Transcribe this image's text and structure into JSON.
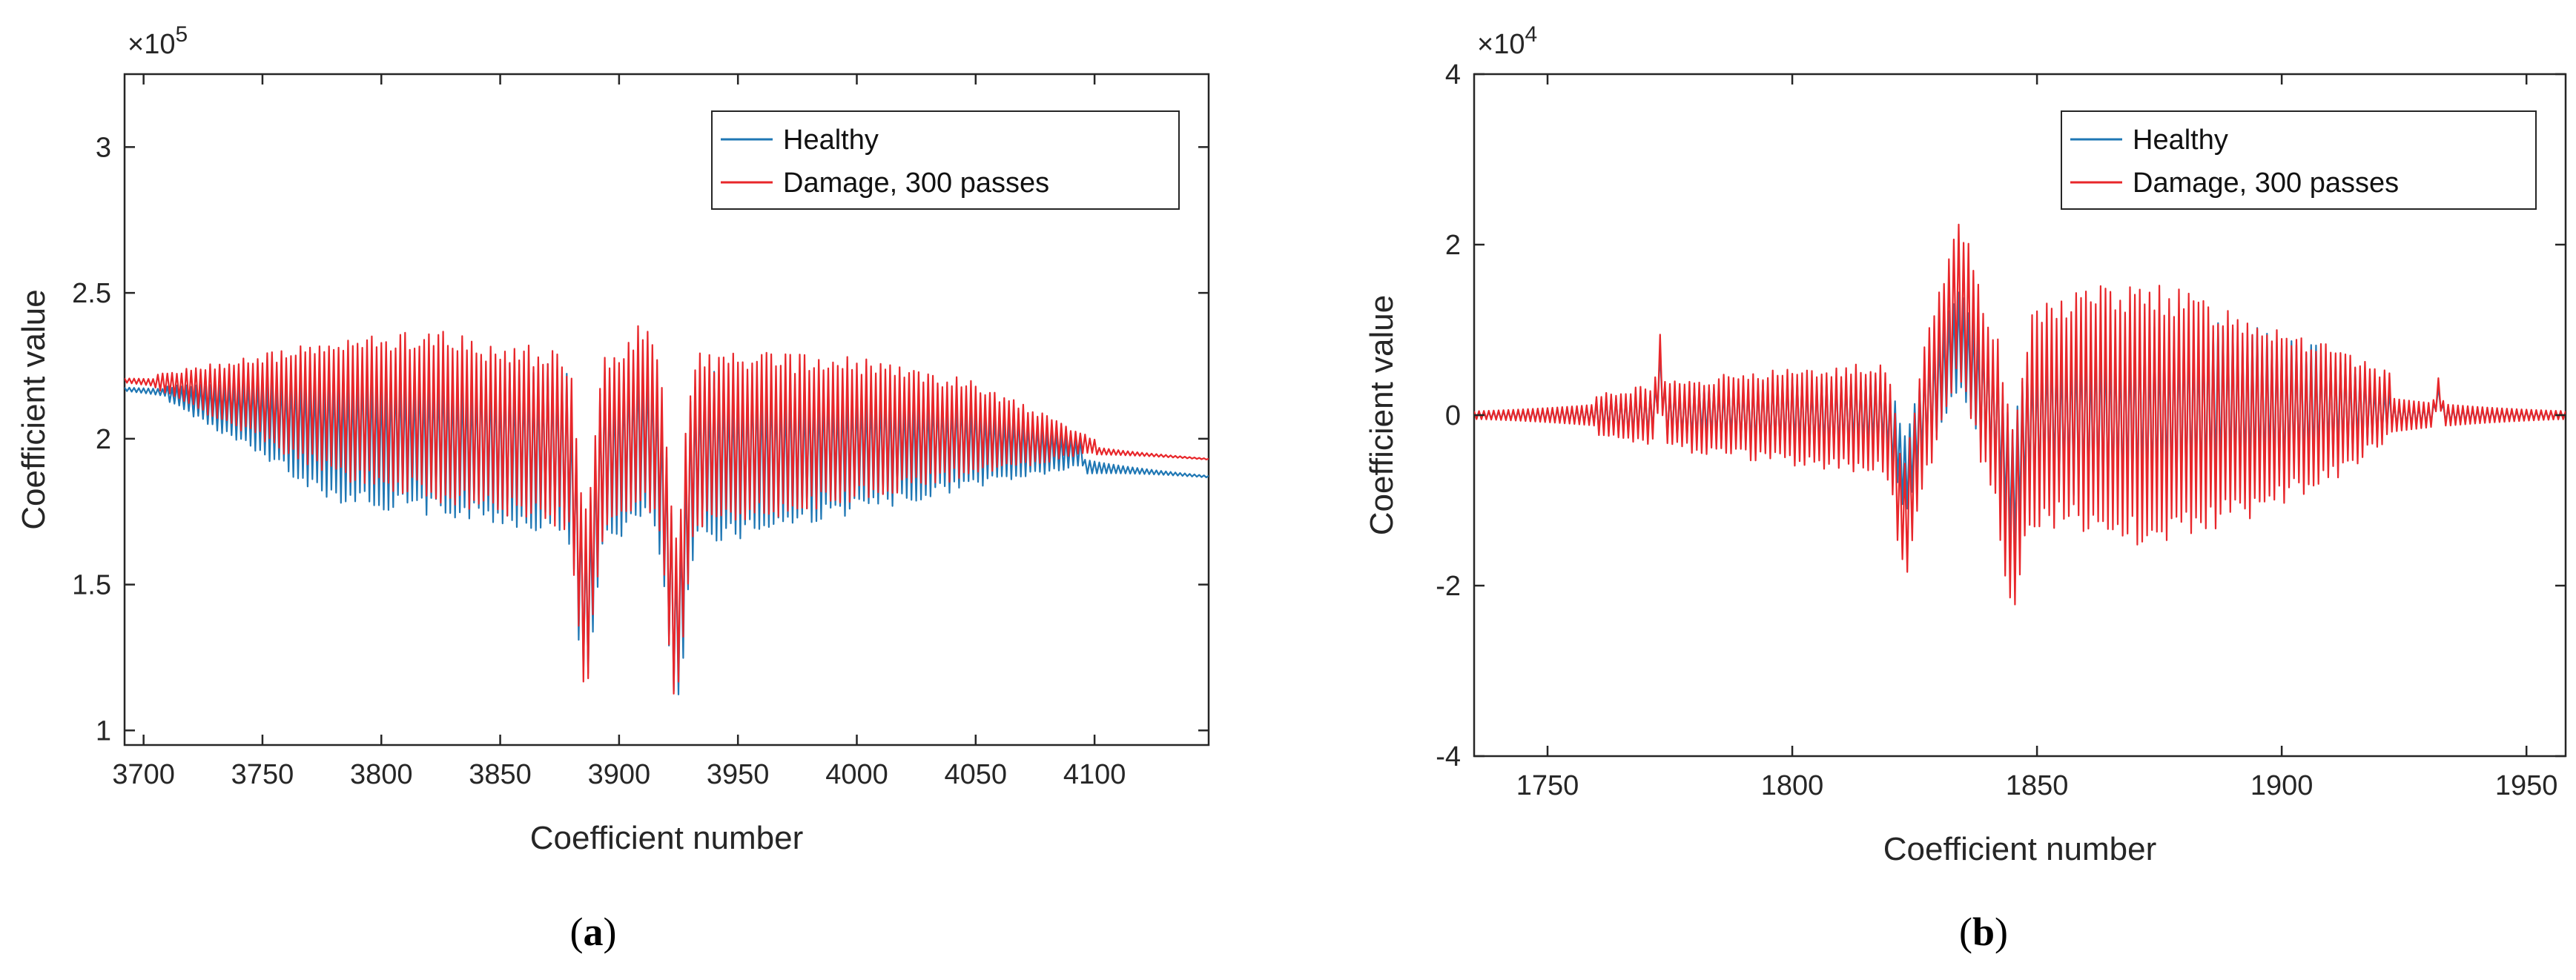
{
  "chart_data": [
    {
      "id": "a",
      "type": "line",
      "caption_open": "(",
      "caption_letter": "a",
      "caption_close": ")",
      "xlabel": "Coefficient number",
      "ylabel": "Coefficient value",
      "exponent_base": "×10",
      "exponent_power": "5",
      "xlim": [
        3692,
        4148
      ],
      "ylim": [
        0.95,
        3.25
      ],
      "xticks": [
        3700,
        3750,
        3800,
        3850,
        3900,
        3950,
        4000,
        4050,
        4100
      ],
      "yticks": [
        1,
        1.5,
        2,
        2.5,
        3
      ],
      "ytick_labels": [
        "1",
        "1.5",
        "2",
        "2.5",
        "3"
      ],
      "legend_position": "top-right",
      "series": [
        {
          "name": "Healthy",
          "color": "#1f77b4",
          "start": 3692,
          "end": 4148,
          "step": 1,
          "baseline": [
            [
              3692,
              2.17
            ],
            [
              4148,
              1.87
            ]
          ],
          "osc_window": [
            3710,
            4095
          ],
          "envelope_hi": [
            [
              3710,
              2.18
            ],
            [
              3780,
              2.25
            ],
            [
              3850,
              2.27
            ],
            [
              3900,
              2.25
            ],
            [
              3950,
              2.24
            ],
            [
              4000,
              2.2
            ],
            [
              4050,
              2.15
            ],
            [
              4095,
              2.0
            ]
          ],
          "envelope_lo": [
            [
              3710,
              2.13
            ],
            [
              3780,
              1.78
            ],
            [
              3850,
              1.7
            ],
            [
              3890,
              1.65
            ],
            [
              3925,
              1.63
            ],
            [
              3950,
              1.65
            ],
            [
              4000,
              1.74
            ],
            [
              4050,
              1.83
            ],
            [
              4095,
              1.9
            ]
          ],
          "bumps": [
            {
              "center": 3886,
              "width": 4.5,
              "amp": -0.55
            },
            {
              "center": 3910,
              "width": 7,
              "amp": 0.06
            },
            {
              "center": 3924,
              "width": 4.5,
              "amp": -0.6
            }
          ]
        },
        {
          "name": "Damage, 300 passes",
          "color": "#e8262a",
          "start": 3692,
          "end": 4148,
          "step": 1,
          "baseline": [
            [
              3692,
              2.2
            ],
            [
              4148,
              1.93
            ]
          ],
          "osc_window": [
            3705,
            4100
          ],
          "envelope_hi": [
            [
              3705,
              2.22
            ],
            [
              3780,
              2.34
            ],
            [
              3820,
              2.38
            ],
            [
              3850,
              2.33
            ],
            [
              3900,
              2.3
            ],
            [
              3950,
              2.3
            ],
            [
              4000,
              2.28
            ],
            [
              4050,
              2.2
            ],
            [
              4100,
              2.0
            ]
          ],
          "envelope_lo": [
            [
              3705,
              2.17
            ],
            [
              3780,
              1.86
            ],
            [
              3850,
              1.73
            ],
            [
              3890,
              1.68
            ],
            [
              3925,
              1.66
            ],
            [
              3950,
              1.7
            ],
            [
              4000,
              1.78
            ],
            [
              4050,
              1.87
            ],
            [
              4100,
              1.95
            ]
          ],
          "bumps": [
            {
              "center": 3886,
              "width": 4.5,
              "amp": -0.55
            },
            {
              "center": 3910,
              "width": 7,
              "amp": 0.1
            },
            {
              "center": 3924,
              "width": 4.5,
              "amp": -0.6
            }
          ]
        }
      ]
    },
    {
      "id": "b",
      "type": "line",
      "caption_open": "(",
      "caption_letter": "b",
      "caption_close": ")",
      "xlabel": "Coefficient number",
      "ylabel": "Coefficient value",
      "exponent_base": "×10",
      "exponent_power": "4",
      "xlim": [
        1735,
        1958
      ],
      "ylim": [
        -4,
        4
      ],
      "xticks": [
        1750,
        1800,
        1850,
        1900,
        1950
      ],
      "yticks": [
        -4,
        -2,
        0,
        2,
        4
      ],
      "ytick_labels": [
        "-4",
        "-2",
        "0",
        "2",
        "4"
      ],
      "legend_position": "top-right",
      "series": [
        {
          "name": "Healthy",
          "color": "#1f77b4",
          "start": 1735,
          "end": 1958,
          "step": 0.5,
          "baseline": [
            [
              1735,
              0
            ],
            [
              1958,
              0
            ]
          ],
          "osc_window": [
            1760,
            1922
          ],
          "envelope_hi": [
            [
              1760,
              0.2
            ],
            [
              1780,
              0.35
            ],
            [
              1800,
              0.45
            ],
            [
              1820,
              0.5
            ],
            [
              1850,
              0.8
            ],
            [
              1870,
              1.05
            ],
            [
              1890,
              1.1
            ],
            [
              1910,
              0.8
            ],
            [
              1922,
              0.3
            ]
          ],
          "envelope_lo": [
            [
              1760,
              -0.2
            ],
            [
              1780,
              -0.3
            ],
            [
              1800,
              -0.45
            ],
            [
              1820,
              -0.45
            ],
            [
              1850,
              -0.9
            ],
            [
              1870,
              -1.1
            ],
            [
              1890,
              -1.0
            ],
            [
              1910,
              -0.6
            ],
            [
              1922,
              -0.2
            ]
          ],
          "bumps": [
            {
              "center": 1823,
              "width": 2.2,
              "amp": -0.7
            },
            {
              "center": 1834,
              "width": 4.5,
              "amp": 0.85
            },
            {
              "center": 1845,
              "width": 2.2,
              "amp": -0.8
            },
            {
              "center": 1773,
              "width": 0.7,
              "amp": 0.5
            },
            {
              "center": 1932,
              "width": 0.7,
              "amp": 0.25
            }
          ]
        },
        {
          "name": "Damage, 300 passes",
          "color": "#e8262a",
          "start": 1735,
          "end": 1958,
          "step": 0.5,
          "baseline": [
            [
              1735,
              0
            ],
            [
              1958,
              0
            ]
          ],
          "osc_window": [
            1760,
            1922
          ],
          "envelope_hi": [
            [
              1760,
              0.25
            ],
            [
              1780,
              0.45
            ],
            [
              1800,
              0.55
            ],
            [
              1820,
              0.65
            ],
            [
              1850,
              1.3
            ],
            [
              1860,
              1.6
            ],
            [
              1880,
              1.5
            ],
            [
              1900,
              1.1
            ],
            [
              1922,
              0.5
            ]
          ],
          "envelope_lo": [
            [
              1760,
              -0.25
            ],
            [
              1780,
              -0.45
            ],
            [
              1800,
              -0.6
            ],
            [
              1820,
              -0.7
            ],
            [
              1850,
              -1.3
            ],
            [
              1870,
              -1.55
            ],
            [
              1890,
              -1.3
            ],
            [
              1910,
              -0.8
            ],
            [
              1922,
              -0.3
            ]
          ],
          "bumps": [
            {
              "center": 1823,
              "width": 2.4,
              "amp": -1.15
            },
            {
              "center": 1834,
              "width": 4.5,
              "amp": 1.35
            },
            {
              "center": 1845,
              "width": 2.4,
              "amp": -1.2
            },
            {
              "center": 1773,
              "width": 0.7,
              "amp": 0.6
            },
            {
              "center": 1932,
              "width": 0.7,
              "amp": 0.3
            }
          ]
        }
      ]
    }
  ]
}
